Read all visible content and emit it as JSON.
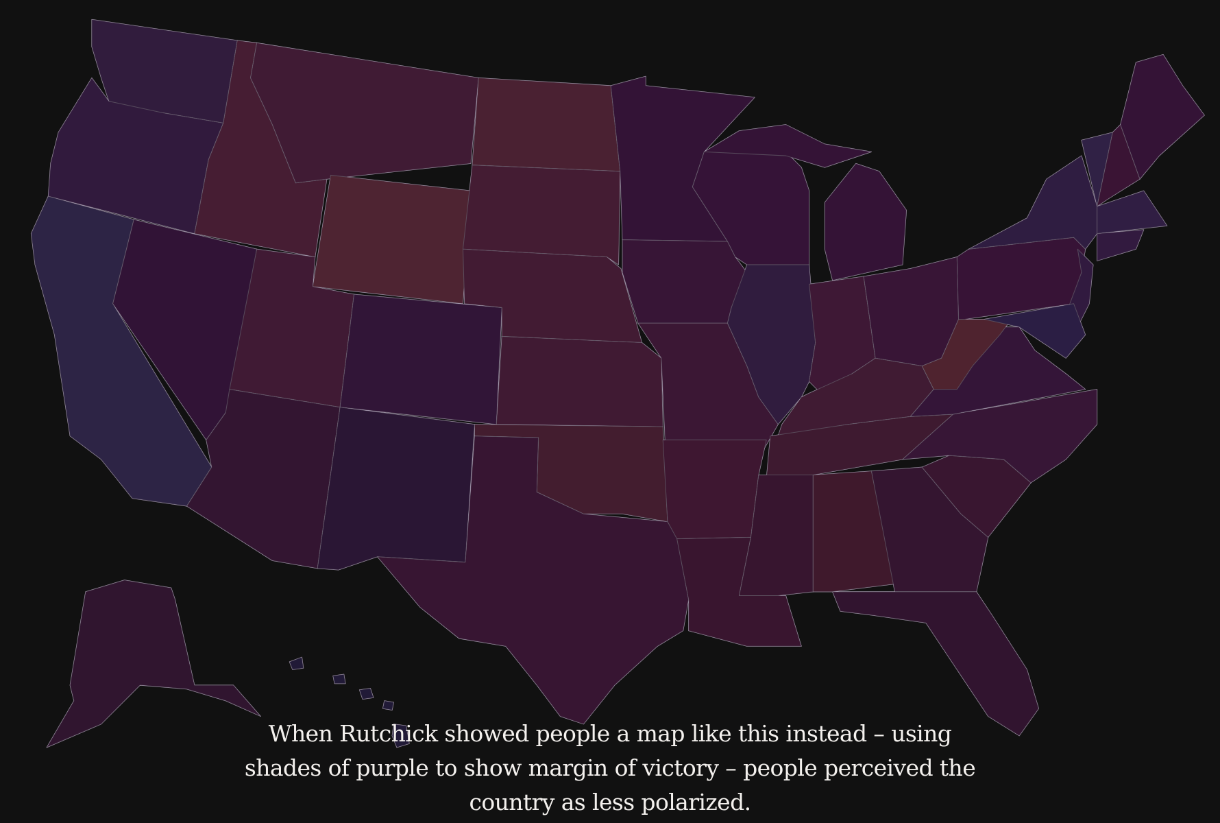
{
  "caption": "When Rutchick showed people a map like this instead – using shades of purple to show margin of victory – people perceived the country as less polarized.",
  "colors": {
    "background": "#111111",
    "border": "#d9c9e6",
    "caption_text": "#f4f1ee"
  },
  "map": {
    "type": "choropleth",
    "encoding": "shades of purple by margin of victory",
    "states": [
      {
        "id": "WA",
        "color": "#6e3e88"
      },
      {
        "id": "OR",
        "color": "#6e3a88"
      },
      {
        "id": "CA",
        "color": "#64509a"
      },
      {
        "id": "NV",
        "color": "#6d2c78"
      },
      {
        "id": "ID",
        "color": "#9b4272"
      },
      {
        "id": "MT",
        "color": "#8f3c74"
      },
      {
        "id": "WY",
        "color": "#ae5070"
      },
      {
        "id": "UT",
        "color": "#8e3a74"
      },
      {
        "id": "CO",
        "color": "#6e2f7a"
      },
      {
        "id": "AZ",
        "color": "#72306e"
      },
      {
        "id": "NM",
        "color": "#5e3274"
      },
      {
        "id": "ND",
        "color": "#a44a70"
      },
      {
        "id": "SD",
        "color": "#983f72"
      },
      {
        "id": "NE",
        "color": "#923d72"
      },
      {
        "id": "KS",
        "color": "#8e3a72"
      },
      {
        "id": "OK",
        "color": "#944068"
      },
      {
        "id": "TX",
        "color": "#7a3070"
      },
      {
        "id": "MN",
        "color": "#722c78"
      },
      {
        "id": "IA",
        "color": "#7a2f78"
      },
      {
        "id": "MO",
        "color": "#843474"
      },
      {
        "id": "AR",
        "color": "#8a346e"
      },
      {
        "id": "LA",
        "color": "#7e3068"
      },
      {
        "id": "WI",
        "color": "#762c7a"
      },
      {
        "id": "IL",
        "color": "#6a3e8a"
      },
      {
        "id": "MI",
        "color": "#742c78"
      },
      {
        "id": "IN",
        "color": "#8a3676"
      },
      {
        "id": "OH",
        "color": "#7d3078"
      },
      {
        "id": "KY",
        "color": "#8e3c72"
      },
      {
        "id": "TN",
        "color": "#8a3a6c"
      },
      {
        "id": "MS",
        "color": "#7a3068"
      },
      {
        "id": "AL",
        "color": "#8c3862"
      },
      {
        "id": "GA",
        "color": "#74306c"
      },
      {
        "id": "FL",
        "color": "#6e2e68"
      },
      {
        "id": "SC",
        "color": "#7e326c"
      },
      {
        "id": "NC",
        "color": "#7a3278"
      },
      {
        "id": "VA",
        "color": "#74307c"
      },
      {
        "id": "WV",
        "color": "#b04f68"
      },
      {
        "id": "PA",
        "color": "#7a2c78"
      },
      {
        "id": "NY",
        "color": "#684090"
      },
      {
        "id": "NJ",
        "color": "#6e3a8c"
      },
      {
        "id": "MD",
        "color": "#604498"
      },
      {
        "id": "VT",
        "color": "#6a4a9a"
      },
      {
        "id": "NH",
        "color": "#802e74"
      },
      {
        "id": "ME",
        "color": "#742c78"
      },
      {
        "id": "MA",
        "color": "#6a4496"
      },
      {
        "id": "CT",
        "color": "#703a8c"
      },
      {
        "id": "AK",
        "color": "#6a3068"
      },
      {
        "id": "HI",
        "color": "#4a3a7a"
      }
    ]
  }
}
